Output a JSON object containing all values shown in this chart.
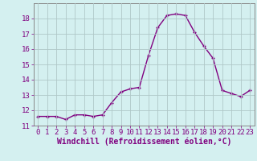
{
  "x": [
    0,
    1,
    2,
    3,
    4,
    5,
    6,
    7,
    8,
    9,
    10,
    11,
    12,
    13,
    14,
    15,
    16,
    17,
    18,
    19,
    20,
    21,
    22,
    23
  ],
  "y": [
    11.6,
    11.6,
    11.6,
    11.4,
    11.7,
    11.7,
    11.6,
    11.7,
    12.5,
    13.2,
    13.4,
    13.5,
    15.6,
    17.4,
    18.2,
    18.3,
    18.2,
    17.1,
    16.2,
    15.4,
    13.3,
    13.1,
    12.9,
    13.3
  ],
  "line_color": "#800080",
  "marker_color": "#800080",
  "bg_color": "#d4f0f0",
  "grid_color": "#b0c8c8",
  "xlabel": "Windchill (Refroidissement éolien,°C)",
  "ylim": [
    11,
    19
  ],
  "xlim": [
    -0.5,
    23.5
  ],
  "yticks": [
    11,
    12,
    13,
    14,
    15,
    16,
    17,
    18
  ],
  "xticks": [
    0,
    1,
    2,
    3,
    4,
    5,
    6,
    7,
    8,
    9,
    10,
    11,
    12,
    13,
    14,
    15,
    16,
    17,
    18,
    19,
    20,
    21,
    22,
    23
  ],
  "font_color": "#800080",
  "tick_fontsize": 6.5,
  "xlabel_fontsize": 7.0,
  "marker_size": 3.5,
  "line_width": 1.0
}
